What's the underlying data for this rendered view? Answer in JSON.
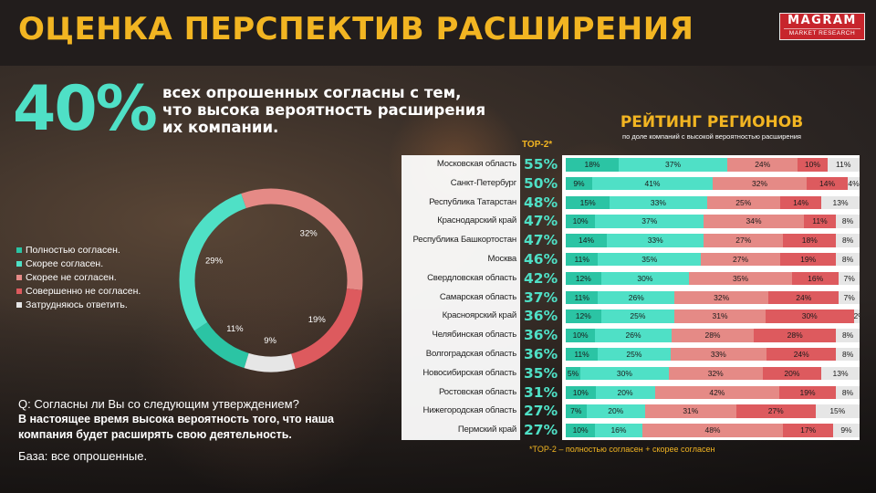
{
  "header": {
    "title": "ОЦЕНКА ПЕРСПЕКТИВ РАСШИРЕНИЯ",
    "logo_name": "MAGRAM",
    "logo_sub": "MARKET RESEARCH"
  },
  "highlight": {
    "percent": "40%",
    "text": "всех опрошенных согласны с тем, что высока вероятность расширения их компании."
  },
  "question": {
    "q": "Q: Согласны ли Вы со следующим утверждением?",
    "statement": "В настоящее время высока вероятность того, что наша компания будет расширять свою деятельность.",
    "base": "База: все опрошенные."
  },
  "colors": {
    "c1": "#2bc4a4",
    "c2": "#4fe0c6",
    "c3": "#e58a86",
    "c4": "#dd5a5e",
    "c5": "#e6e6e6",
    "accent": "#f2b522"
  },
  "chart_data": [
    {
      "type": "pie",
      "categories": [
        "Полностью согласен.",
        "Скорее согласен.",
        "Скорее не согласен.",
        "Совершенно не согласен.",
        "Затрудняюсь ответить."
      ],
      "values": [
        11,
        29,
        32,
        19,
        9
      ],
      "value_labels": [
        "11%",
        "29%",
        "32%",
        "19%",
        "9%"
      ],
      "style": "donut",
      "legend": "left"
    },
    {
      "type": "bar",
      "orientation": "horizontal-stacked-100",
      "title": "РЕЙТИНГ РЕГИОНОВ",
      "subtitle": "по доле компаний с высокой вероятностью расширения",
      "top2_header": "TOP-2*",
      "footnote": "*TOP-2 – полностью согласен + скорее согласен",
      "rows": [
        {
          "region": "Московская область",
          "top2": "55%",
          "values": [
            18,
            37,
            24,
            10,
            11
          ]
        },
        {
          "region": "Санкт-Петербург",
          "top2": "50%",
          "values": [
            9,
            41,
            32,
            14,
            4
          ]
        },
        {
          "region": "Республика Татарстан",
          "top2": "48%",
          "values": [
            15,
            33,
            25,
            14,
            13
          ]
        },
        {
          "region": "Краснодарский край",
          "top2": "47%",
          "values": [
            10,
            37,
            34,
            11,
            8
          ]
        },
        {
          "region": "Республика Башкортостан",
          "top2": "47%",
          "values": [
            14,
            33,
            27,
            18,
            8
          ]
        },
        {
          "region": "Москва",
          "top2": "46%",
          "values": [
            11,
            35,
            27,
            19,
            8
          ]
        },
        {
          "region": "Свердловская область",
          "top2": "42%",
          "values": [
            12,
            30,
            35,
            16,
            7
          ]
        },
        {
          "region": "Самарская область",
          "top2": "37%",
          "values": [
            11,
            26,
            32,
            24,
            7
          ]
        },
        {
          "region": "Красноярский край",
          "top2": "36%",
          "values": [
            12,
            25,
            31,
            30,
            2
          ]
        },
        {
          "region": "Челябинская область",
          "top2": "36%",
          "values": [
            10,
            26,
            28,
            28,
            8
          ]
        },
        {
          "region": "Волгоградская область",
          "top2": "36%",
          "values": [
            11,
            25,
            33,
            24,
            8
          ]
        },
        {
          "region": "Новосибирская область",
          "top2": "35%",
          "values": [
            5,
            30,
            32,
            20,
            13
          ]
        },
        {
          "region": "Ростовская область",
          "top2": "31%",
          "values": [
            10,
            20,
            42,
            19,
            8
          ]
        },
        {
          "region": "Нижегородская область",
          "top2": "27%",
          "values": [
            7,
            20,
            31,
            27,
            15
          ]
        },
        {
          "region": "Пермский край",
          "top2": "27%",
          "values": [
            10,
            16,
            48,
            17,
            9
          ]
        }
      ]
    }
  ]
}
